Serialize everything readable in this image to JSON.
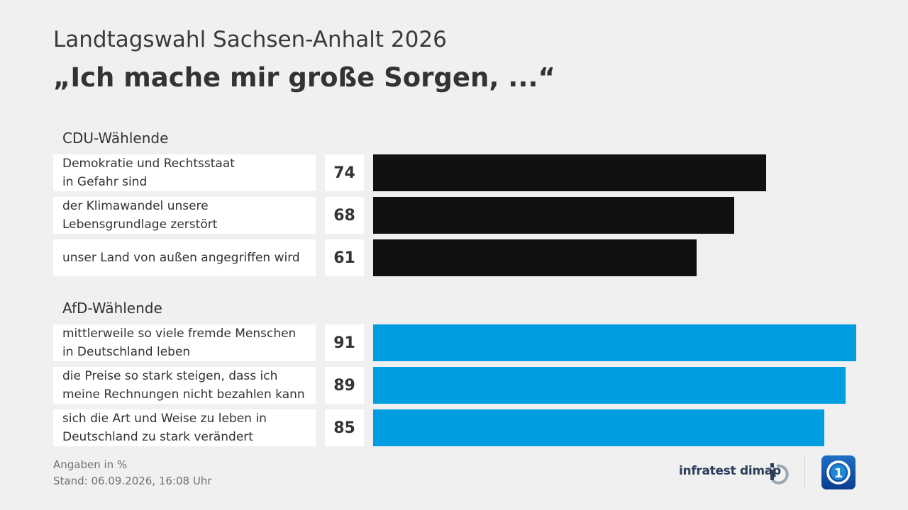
{
  "supertitle": "Landtagswahl Sachsen-Anhalt 2026",
  "title": "„Ich mache mir große Sorgen, ...“",
  "chart_data": {
    "type": "bar",
    "orientation": "horizontal",
    "unit": "%",
    "xlim": [
      0,
      91
    ],
    "groups": [
      {
        "name": "CDU-Wählende",
        "color": "#111111",
        "rows": [
          {
            "label": "Demokratie und Rechtsstaat\nin Gefahr sind",
            "value": 74
          },
          {
            "label": "der Klimawandel unsere\nLebensgrundlage zerstört",
            "value": 68
          },
          {
            "label": "unser Land von außen angegriffen wird",
            "value": 61
          }
        ]
      },
      {
        "name": "AfD-Wählende",
        "color": "#009de0",
        "rows": [
          {
            "label": "mittlerweile so viele fremde Menschen\nin Deutschland leben",
            "value": 91
          },
          {
            "label": "die Preise so stark steigen, dass ich\nmeine Rechnungen nicht bezahlen kann",
            "value": 89
          },
          {
            "label": "sich die Art und Weise zu leben in\nDeutschland zu stark verändert",
            "value": 85
          }
        ]
      }
    ]
  },
  "footer": {
    "note": "Angaben in %",
    "stand": "Stand:  06.09.2026, 16:08 Uhr"
  },
  "branding": {
    "pollster": "infratest dimap",
    "pollster_icon": "infratest-dimap-logo",
    "broadcaster_icon": "ard-tagesschau-logo"
  }
}
